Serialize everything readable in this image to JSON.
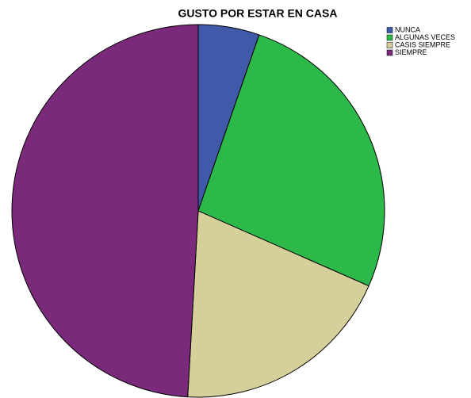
{
  "chart_data": {
    "type": "pie",
    "title": "GUSTO POR ESTAR EN CASA",
    "categories": [
      "NUNCA",
      "ALGUNAS VECES",
      "CASIS SIEMPRE",
      "SIEMPRE"
    ],
    "values": [
      5.3,
      26.3,
      19.3,
      49.1
    ],
    "colors": [
      "#3f5aa8",
      "#2db84a",
      "#d5cf9a",
      "#7b2a7b"
    ],
    "legend": "upper right"
  }
}
